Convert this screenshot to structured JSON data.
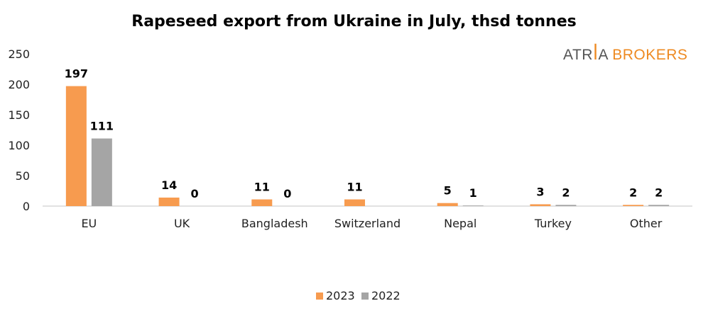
{
  "chart_data": {
    "type": "bar",
    "title": "Rapeseed export from Ukraine in July, thsd tonnes",
    "categories": [
      "EU",
      "UK",
      "Bangladesh",
      "Switzerland",
      "Nepal",
      "Turkey",
      "Other"
    ],
    "series": [
      {
        "name": "2023",
        "color": "#f79b4f",
        "values": [
          197,
          14,
          11,
          11,
          5,
          3,
          2
        ]
      },
      {
        "name": "2022",
        "color": "#a5a5a5",
        "values": [
          111,
          0,
          0,
          null,
          1,
          2,
          2
        ]
      }
    ],
    "ylim": [
      0,
      250
    ],
    "yticks": [
      0,
      50,
      100,
      150,
      200,
      250
    ],
    "xlabel": "",
    "ylabel": "",
    "grid": false,
    "legend": "bottom"
  },
  "logo": {
    "part1": "ATRIA",
    "part2": "BROKERS"
  }
}
